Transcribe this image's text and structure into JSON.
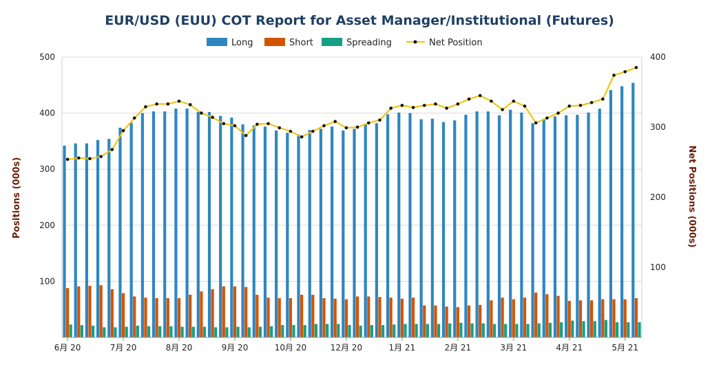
{
  "chart_data": {
    "type": "bar",
    "title": "EUR/USD (EUU) COT Report for Asset Manager/Institutional (Futures)",
    "ylabel_left": "Positions (000s)",
    "ylabel_right": "Net Positions (000s)",
    "ylim_left": [
      0,
      500
    ],
    "ylim_right": [
      0,
      400
    ],
    "yticks_left": [
      100,
      200,
      300,
      400,
      500
    ],
    "yticks_right": [
      100,
      200,
      300,
      400
    ],
    "x_ticks": [
      {
        "index": 0,
        "label": "6月 20"
      },
      {
        "index": 5,
        "label": "7月 20"
      },
      {
        "index": 10,
        "label": "8月 20"
      },
      {
        "index": 15,
        "label": "9月 20"
      },
      {
        "index": 20,
        "label": "10月 20"
      },
      {
        "index": 25,
        "label": "12月 20"
      },
      {
        "index": 30,
        "label": "1月 21"
      },
      {
        "index": 35,
        "label": "2月 21"
      },
      {
        "index": 40,
        "label": "3月 21"
      },
      {
        "index": 45,
        "label": "4月 21"
      },
      {
        "index": 50,
        "label": "5月 21"
      }
    ],
    "grid": true,
    "legend_position": "top-center",
    "series": [
      {
        "name": "Long",
        "type": "bar",
        "axis": "left",
        "color": "#2e86c1",
        "values": [
          342,
          346,
          346,
          352,
          354,
          374,
          383,
          400,
          403,
          403,
          408,
          408,
          402,
          402,
          395,
          392,
          380,
          378,
          376,
          369,
          365,
          362,
          370,
          372,
          376,
          369,
          372,
          380,
          382,
          398,
          401,
          400,
          389,
          390,
          384,
          387,
          397,
          403,
          403,
          396,
          406,
          401,
          382,
          390,
          394,
          396,
          397,
          401,
          408,
          441,
          448,
          454
        ]
      },
      {
        "name": "Short",
        "type": "bar",
        "axis": "left",
        "color": "#d35400",
        "values": [
          88,
          91,
          92,
          93,
          86,
          79,
          73,
          71,
          70,
          70,
          70,
          76,
          82,
          86,
          91,
          91,
          90,
          76,
          71,
          70,
          70,
          76,
          76,
          70,
          69,
          68,
          73,
          73,
          72,
          71,
          69,
          71,
          57,
          57,
          55,
          54,
          57,
          58,
          66,
          71,
          68,
          71,
          80,
          77,
          74,
          65,
          66,
          66,
          68,
          68,
          68,
          70
        ]
      },
      {
        "name": "Spreading",
        "type": "bar",
        "axis": "left",
        "color": "#16a085",
        "values": [
          23,
          22,
          21,
          18,
          18,
          19,
          21,
          20,
          20,
          20,
          19,
          19,
          19,
          18,
          18,
          19,
          18,
          19,
          20,
          22,
          22,
          22,
          24,
          24,
          24,
          22,
          21,
          22,
          22,
          23,
          24,
          24,
          24,
          24,
          25,
          26,
          25,
          25,
          24,
          24,
          24,
          24,
          25,
          26,
          27,
          30,
          29,
          29,
          31,
          27,
          27,
          27
        ]
      },
      {
        "name": "Net Position",
        "type": "line",
        "axis": "right",
        "color": "#f1c40f",
        "values": [
          254,
          256,
          255,
          258,
          268,
          295,
          313,
          329,
          333,
          333,
          337,
          332,
          320,
          314,
          305,
          302,
          288,
          304,
          305,
          299,
          294,
          286,
          294,
          302,
          308,
          299,
          300,
          306,
          310,
          327,
          331,
          328,
          331,
          333,
          327,
          333,
          340,
          345,
          337,
          325,
          337,
          330,
          306,
          313,
          320,
          330,
          331,
          335,
          340,
          374,
          379,
          385
        ]
      }
    ]
  }
}
